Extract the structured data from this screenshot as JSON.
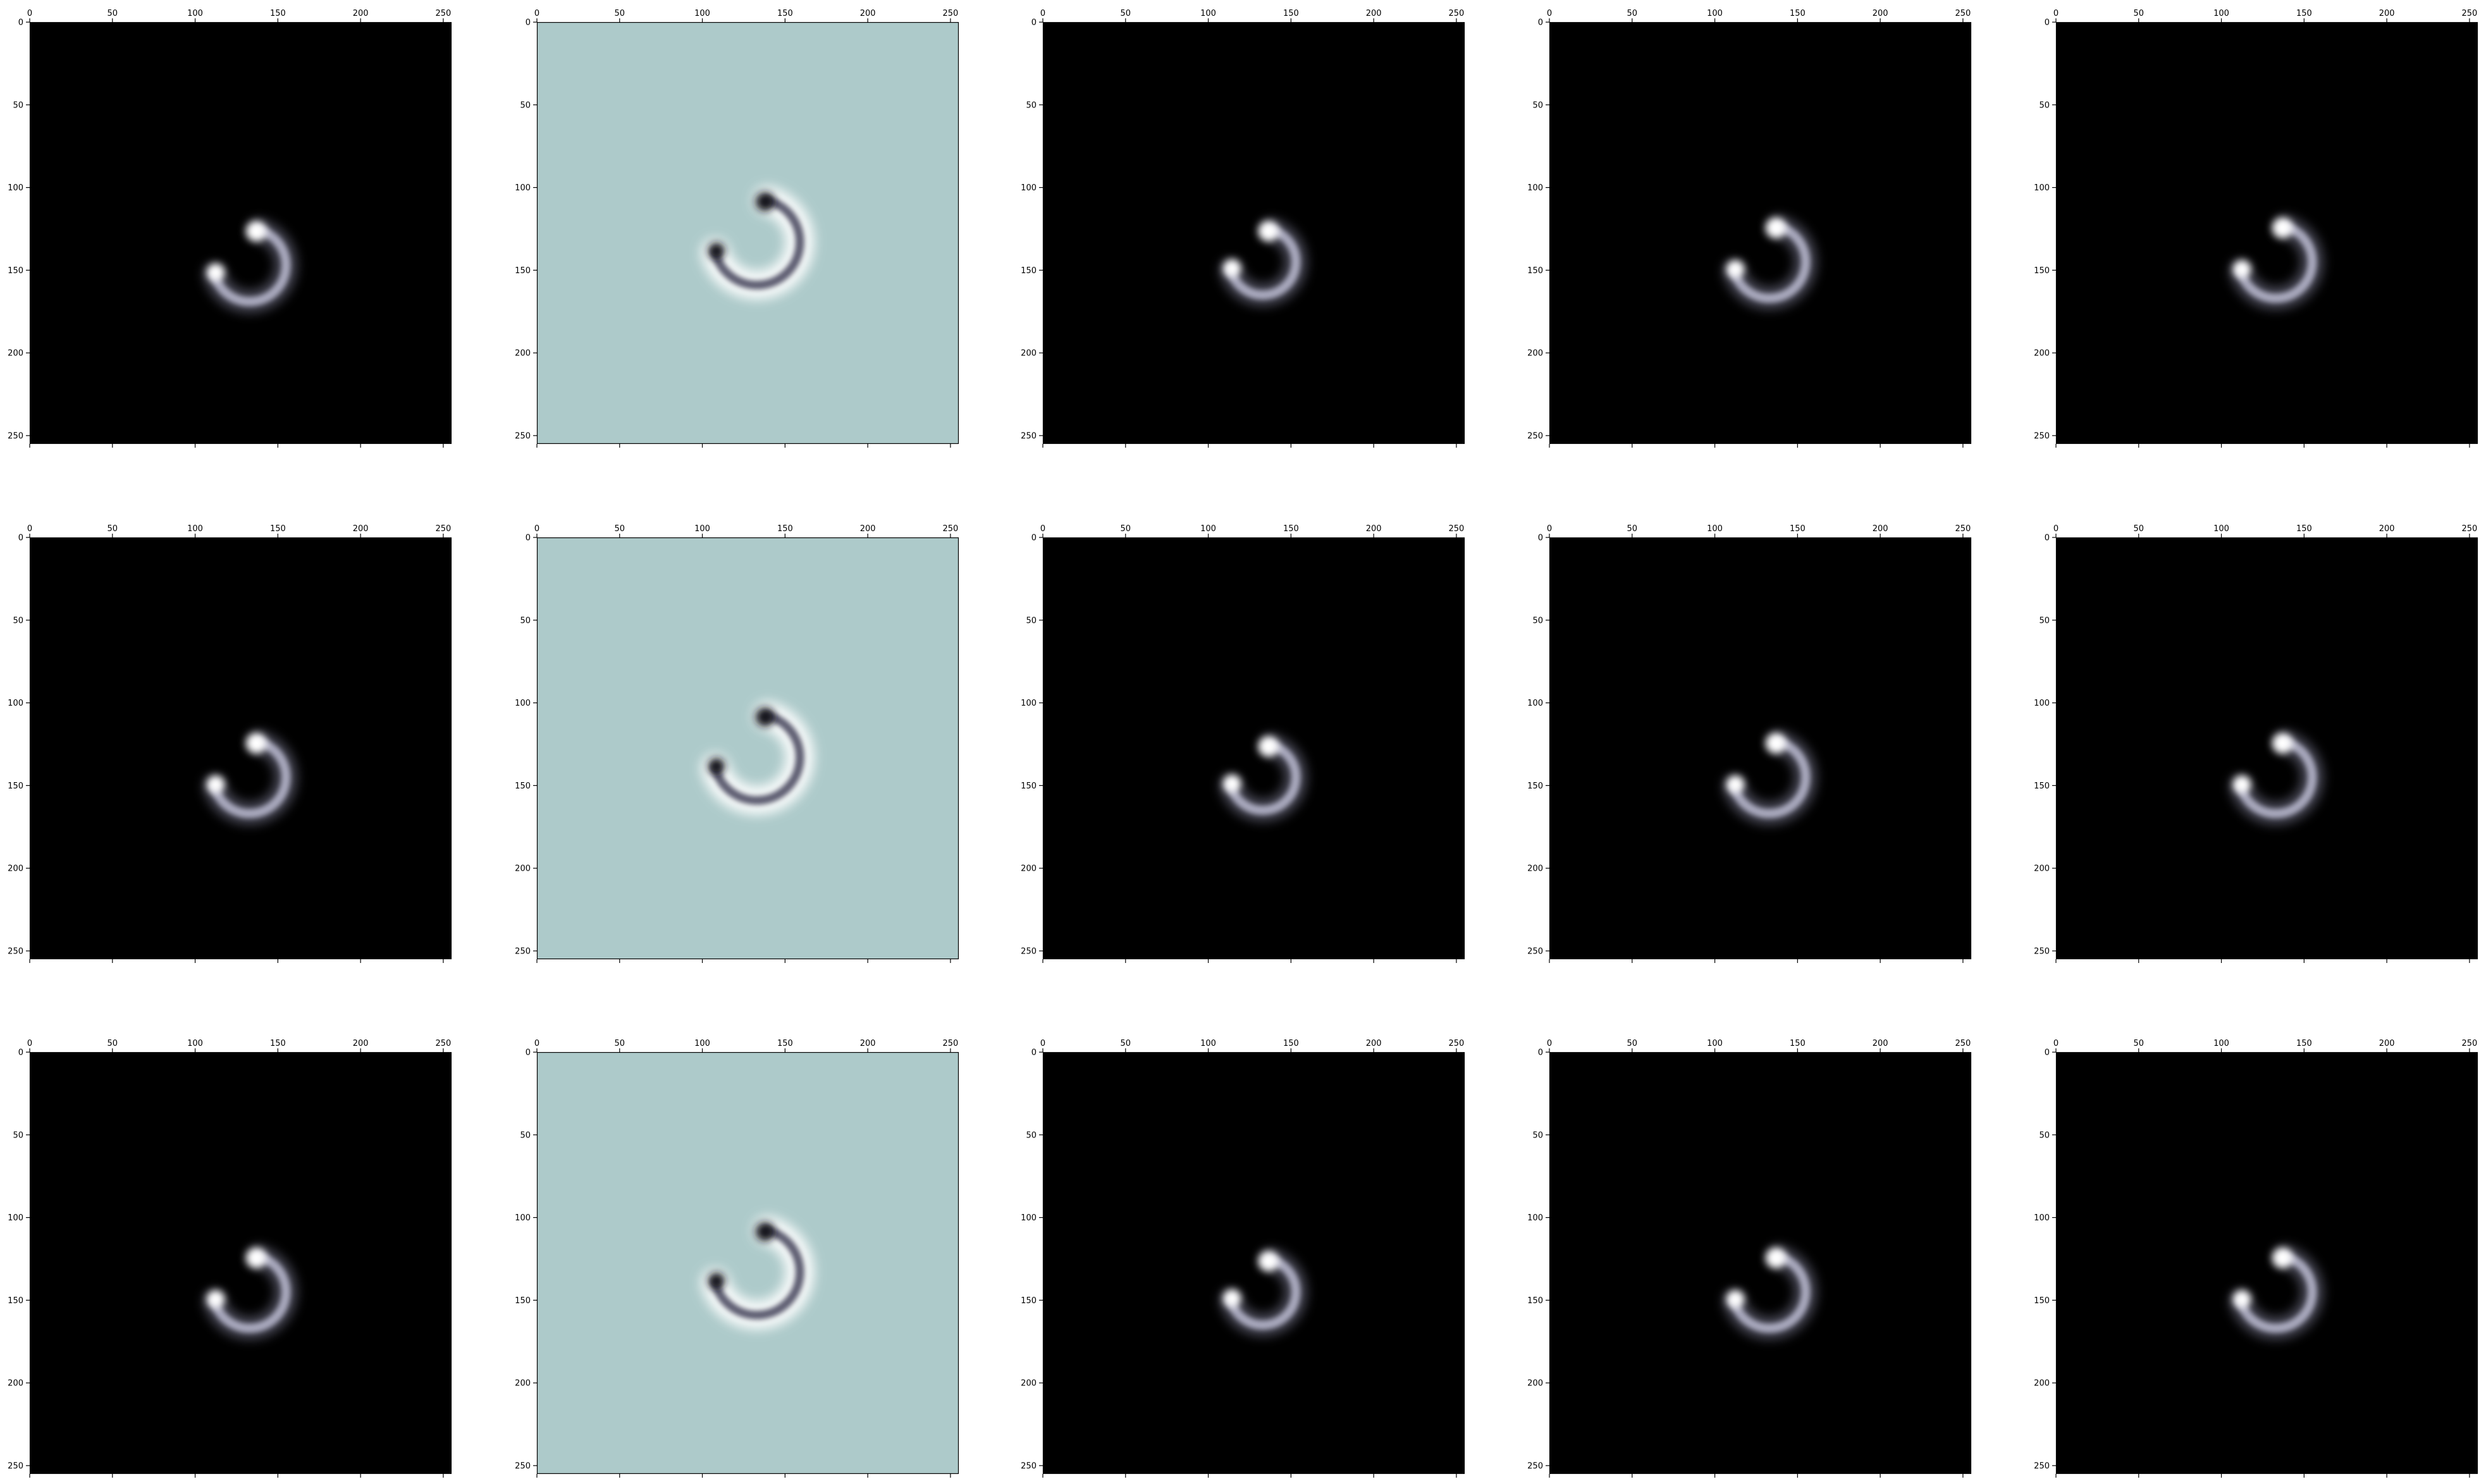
{
  "figure": {
    "rows": 3,
    "cols": 5,
    "x_range": [
      0,
      255
    ],
    "y_range": [
      0,
      255
    ],
    "x_ticks": [
      0,
      50,
      100,
      150,
      200,
      250
    ],
    "y_ticks": [
      0,
      50,
      100,
      150,
      200,
      250
    ],
    "x_tick_position": "top",
    "colors": {
      "dark_background": "#000000",
      "light_background": "#adcaca",
      "arc_glow": "#8c8ca6",
      "arc_light": "#ffffff",
      "arc_dark_on_light": "#14141e",
      "axis_frame": "#000000"
    },
    "panels": [
      {
        "row": 0,
        "col": 0,
        "style": "dark",
        "arc_cx": 133,
        "arc_cy": 147,
        "arc_r": 22
      },
      {
        "row": 0,
        "col": 1,
        "style": "light",
        "arc_cx": 133,
        "arc_cy": 133,
        "arc_r": 26
      },
      {
        "row": 0,
        "col": 2,
        "style": "dark",
        "arc_cx": 133,
        "arc_cy": 145,
        "arc_r": 20
      },
      {
        "row": 0,
        "col": 3,
        "style": "dark",
        "arc_cx": 133,
        "arc_cy": 145,
        "arc_r": 22
      },
      {
        "row": 0,
        "col": 4,
        "style": "dark",
        "arc_cx": 133,
        "arc_cy": 145,
        "arc_r": 22
      },
      {
        "row": 1,
        "col": 0,
        "style": "dark",
        "arc_cx": 133,
        "arc_cy": 145,
        "arc_r": 22
      },
      {
        "row": 1,
        "col": 1,
        "style": "light",
        "arc_cx": 133,
        "arc_cy": 133,
        "arc_r": 26
      },
      {
        "row": 1,
        "col": 2,
        "style": "dark",
        "arc_cx": 133,
        "arc_cy": 145,
        "arc_r": 20
      },
      {
        "row": 1,
        "col": 3,
        "style": "dark",
        "arc_cx": 133,
        "arc_cy": 145,
        "arc_r": 22
      },
      {
        "row": 1,
        "col": 4,
        "style": "dark",
        "arc_cx": 133,
        "arc_cy": 145,
        "arc_r": 22
      },
      {
        "row": 2,
        "col": 0,
        "style": "dark",
        "arc_cx": 133,
        "arc_cy": 145,
        "arc_r": 22
      },
      {
        "row": 2,
        "col": 1,
        "style": "light",
        "arc_cx": 133,
        "arc_cy": 133,
        "arc_r": 26
      },
      {
        "row": 2,
        "col": 2,
        "style": "dark",
        "arc_cx": 133,
        "arc_cy": 145,
        "arc_r": 20
      },
      {
        "row": 2,
        "col": 3,
        "style": "dark",
        "arc_cx": 133,
        "arc_cy": 145,
        "arc_r": 22
      },
      {
        "row": 2,
        "col": 4,
        "style": "dark",
        "arc_cx": 133,
        "arc_cy": 145,
        "arc_r": 22
      }
    ]
  }
}
